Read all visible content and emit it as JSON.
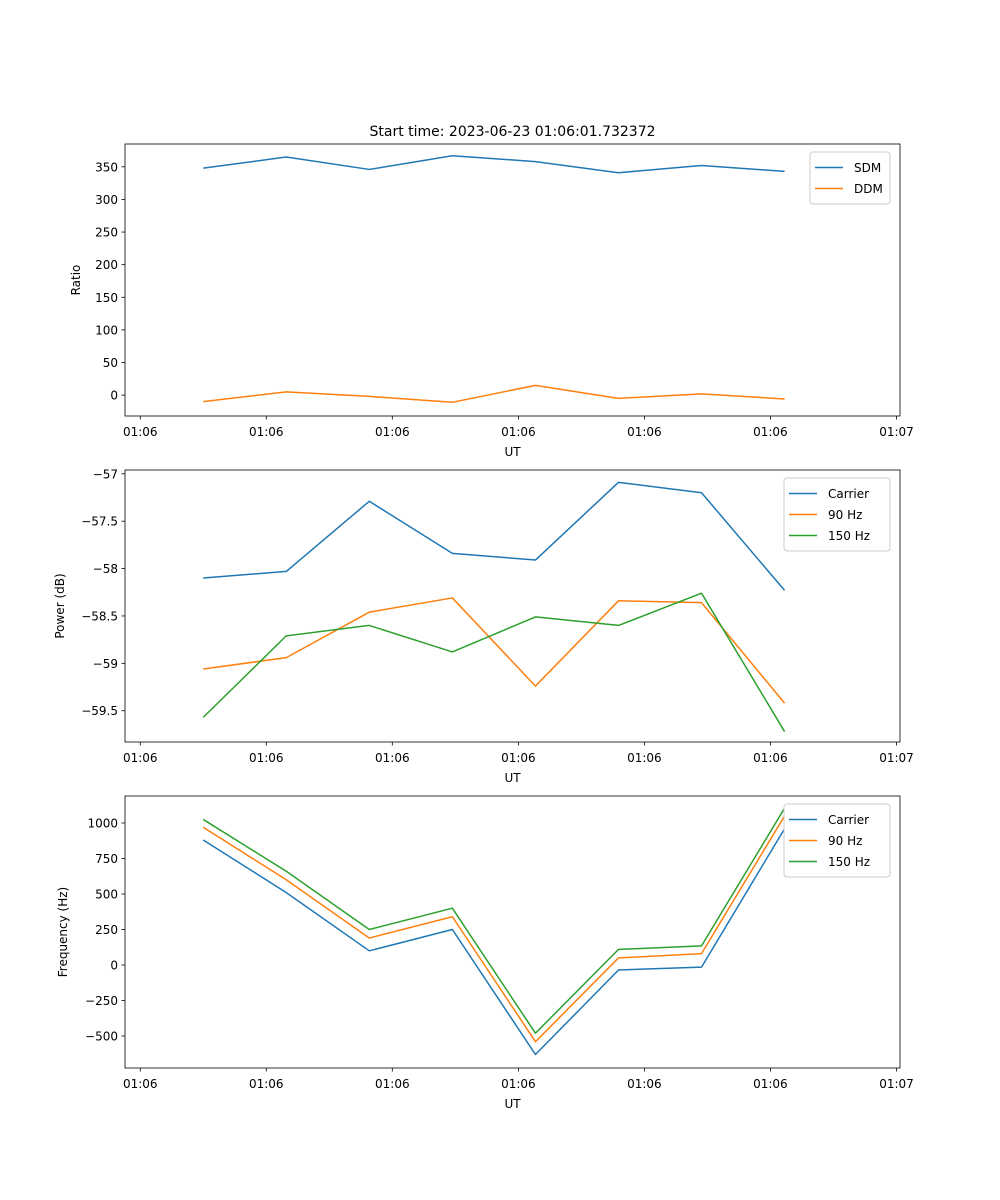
{
  "figure": {
    "title": "Start time: 2023-06-23 01:06:01.732372"
  },
  "colors": {
    "blue": "#1f77b4",
    "orange": "#ff7f0e",
    "green": "#2ca02c"
  },
  "chart_data": [
    {
      "type": "line",
      "title": "Start time: 2023-06-23 01:06:01.732372",
      "xlabel": "UT",
      "ylabel": "Ratio",
      "xticks": [
        "01:06",
        "01:06",
        "01:06",
        "01:06",
        "01:06",
        "01:06",
        "01:07"
      ],
      "yticks": [
        0,
        50,
        100,
        150,
        200,
        250,
        300,
        350
      ],
      "ylim": [
        -32,
        385
      ],
      "legend": "top-right",
      "grid": false,
      "series": [
        {
          "name": "SDM",
          "color": "#1f77b4",
          "values": [
            348,
            365,
            346,
            367,
            358,
            341,
            352,
            343
          ]
        },
        {
          "name": "DDM",
          "color": "#ff7f0e",
          "values": [
            -10,
            5,
            -2,
            -11,
            15,
            -5,
            2,
            -6
          ]
        }
      ]
    },
    {
      "type": "line",
      "title": "",
      "xlabel": "UT",
      "ylabel": "Power (dB)",
      "xticks": [
        "01:06",
        "01:06",
        "01:06",
        "01:06",
        "01:06",
        "01:06",
        "01:07"
      ],
      "yticks": [
        -57.0,
        -57.5,
        -58.0,
        -58.5,
        -59.0,
        -59.5
      ],
      "ylim": [
        -59.83,
        -56.96
      ],
      "legend": "top-right",
      "grid": false,
      "series": [
        {
          "name": "Carrier",
          "color": "#1f77b4",
          "values": [
            -58.1,
            -58.03,
            -57.29,
            -57.84,
            -57.91,
            -57.09,
            -57.2,
            -58.23
          ]
        },
        {
          "name": "90 Hz",
          "color": "#ff7f0e",
          "values": [
            -59.06,
            -58.94,
            -58.46,
            -58.31,
            -59.24,
            -58.34,
            -58.36,
            -59.42
          ]
        },
        {
          "name": "150 Hz",
          "color": "#2ca02c",
          "values": [
            -59.57,
            -58.71,
            -58.6,
            -58.88,
            -58.51,
            -58.6,
            -58.26,
            -59.72
          ]
        }
      ]
    },
    {
      "type": "line",
      "title": "",
      "xlabel": "UT",
      "ylabel": "Frequency (Hz)",
      "xticks": [
        "01:06",
        "01:06",
        "01:06",
        "01:06",
        "01:06",
        "01:06",
        "01:07"
      ],
      "yticks": [
        1000,
        750,
        500,
        250,
        0,
        -250,
        -500
      ],
      "ylim": [
        -725,
        1190
      ],
      "legend": "top-right",
      "grid": false,
      "series": [
        {
          "name": "Carrier",
          "color": "#1f77b4",
          "values": [
            880,
            510,
            100,
            250,
            -630,
            -35,
            -15,
            960
          ]
        },
        {
          "name": "90 Hz",
          "color": "#ff7f0e",
          "values": [
            970,
            600,
            190,
            340,
            -540,
            50,
            80,
            1050
          ]
        },
        {
          "name": "150 Hz",
          "color": "#2ca02c",
          "values": [
            1025,
            660,
            250,
            400,
            -480,
            110,
            135,
            1105
          ]
        }
      ]
    }
  ]
}
